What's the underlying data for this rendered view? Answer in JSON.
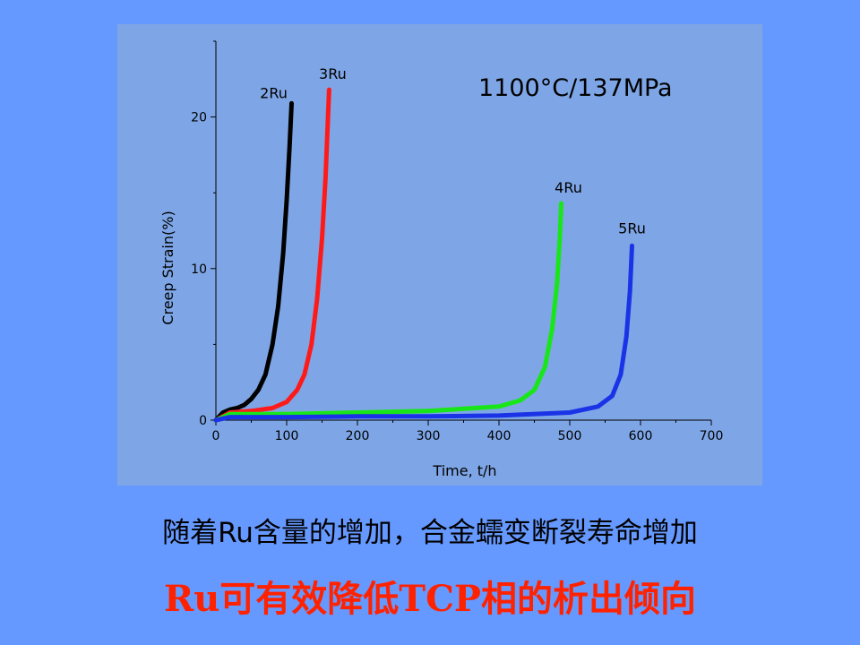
{
  "chart_data": {
    "type": "line",
    "annotation": "1100°C/137MPa",
    "xlabel": "Time, t/h",
    "ylabel": "Creep Strain(%)",
    "xlim": [
      0,
      700
    ],
    "ylim": [
      0,
      25
    ],
    "xticks": [
      0,
      100,
      200,
      300,
      400,
      500,
      600,
      700
    ],
    "yticks": [
      0,
      10,
      20
    ],
    "x_tick_labels": [
      "0",
      "100",
      "200",
      "300",
      "400",
      "500",
      "600",
      "700"
    ],
    "y_tick_labels": [
      "0",
      "10",
      "20"
    ],
    "grid": false,
    "series": [
      {
        "name": "2Ru",
        "color": "#000000",
        "x": [
          0,
          10,
          20,
          30,
          40,
          50,
          60,
          70,
          80,
          88,
          95,
          100,
          104,
          107
        ],
        "y": [
          0,
          0.5,
          0.7,
          0.8,
          1.0,
          1.4,
          2.0,
          3.0,
          5.0,
          7.5,
          11.0,
          14.5,
          18.0,
          20.9
        ]
      },
      {
        "name": "3Ru",
        "color": "#ff1a1a",
        "x": [
          0,
          20,
          50,
          80,
          100,
          115,
          125,
          135,
          143,
          150,
          155,
          158,
          160
        ],
        "y": [
          0,
          0.5,
          0.6,
          0.8,
          1.2,
          2.0,
          3.0,
          5.0,
          8.0,
          12.0,
          16.0,
          19.5,
          21.8
        ]
      },
      {
        "name": "4Ru",
        "color": "#19e619",
        "x": [
          0,
          20,
          100,
          200,
          300,
          400,
          430,
          450,
          465,
          475,
          482,
          486,
          488
        ],
        "y": [
          0,
          0.4,
          0.4,
          0.5,
          0.6,
          0.9,
          1.3,
          2.0,
          3.5,
          6.0,
          9.0,
          12.0,
          14.3
        ]
      },
      {
        "name": "5Ru",
        "color": "#1a33e6",
        "x": [
          0,
          20,
          100,
          200,
          300,
          400,
          500,
          540,
          560,
          572,
          580,
          585,
          588
        ],
        "y": [
          0,
          0.2,
          0.2,
          0.25,
          0.25,
          0.3,
          0.5,
          0.9,
          1.6,
          3.0,
          5.5,
          8.5,
          11.5
        ]
      }
    ]
  },
  "caption": "随着Ru含量的增加，合金蠕变断裂寿命增加",
  "headline": "Ru可有效降低TCP相的析出倾向"
}
